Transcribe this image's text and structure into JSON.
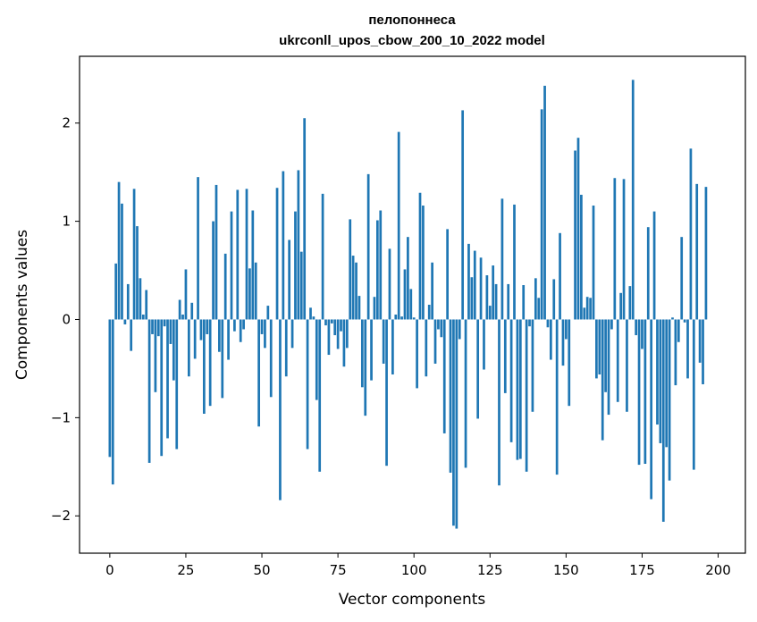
{
  "chart_data": {
    "type": "bar",
    "title": "пелопоннеса",
    "subtitle": "ukrconll_upos_cbow_200_10_2022 model",
    "xlabel": "Vector components",
    "ylabel": "Components values",
    "xlim": [
      -9.95,
      208.95
    ],
    "ylim": [
      -2.38,
      2.68
    ],
    "xticks": [
      0,
      25,
      50,
      75,
      100,
      125,
      150,
      175,
      200
    ],
    "yticks": [
      -2,
      -1,
      0,
      1,
      2
    ],
    "ytick_labels": [
      "−2",
      "−1",
      "0",
      "1",
      "2"
    ],
    "grid": false,
    "bar_color": "#1f77b4",
    "values": [
      -1.4,
      -1.68,
      0.57,
      1.4,
      1.18,
      -0.05,
      0.36,
      -0.32,
      1.33,
      0.95,
      0.42,
      0.05,
      0.3,
      -1.46,
      -0.15,
      -0.74,
      -0.17,
      -1.39,
      -0.07,
      -1.21,
      -0.25,
      -0.62,
      -1.32,
      0.2,
      0.05,
      0.51,
      -0.58,
      0.17,
      -0.4,
      1.45,
      -0.21,
      -0.96,
      -0.15,
      -0.88,
      1.0,
      1.37,
      -0.33,
      -0.8,
      0.67,
      -0.41,
      1.1,
      -0.12,
      1.32,
      -0.23,
      -0.1,
      1.33,
      0.52,
      1.11,
      0.58,
      -1.09,
      -0.15,
      -0.29,
      0.14,
      -0.79,
      0.0,
      1.34,
      -1.84,
      1.51,
      -0.58,
      0.81,
      -0.29,
      1.1,
      1.52,
      0.69,
      2.05,
      -1.32,
      0.12,
      0.03,
      -0.82,
      -1.55,
      1.28,
      -0.06,
      -0.36,
      -0.04,
      -0.16,
      -0.3,
      -0.12,
      -0.48,
      -0.29,
      1.02,
      0.65,
      0.58,
      0.24,
      -0.69,
      -0.98,
      1.48,
      -0.62,
      0.23,
      1.01,
      1.11,
      -0.45,
      -1.49,
      0.72,
      -0.56,
      0.05,
      1.91,
      0.03,
      0.51,
      0.84,
      0.31,
      0.02,
      -0.7,
      1.29,
      1.16,
      -0.58,
      0.15,
      0.58,
      -0.45,
      -0.1,
      -0.18,
      -1.16,
      0.92,
      -1.56,
      -2.1,
      -2.13,
      -0.2,
      2.13,
      -1.51,
      0.77,
      0.43,
      0.7,
      -1.01,
      0.63,
      -0.51,
      0.45,
      0.14,
      0.55,
      0.36,
      -1.69,
      1.23,
      -0.75,
      0.36,
      -1.25,
      1.17,
      -1.43,
      -1.42,
      0.35,
      -1.55,
      -0.07,
      -0.94,
      0.42,
      0.22,
      2.14,
      2.38,
      -0.08,
      -0.41,
      0.41,
      -1.58,
      0.88,
      -0.47,
      -0.2,
      -0.88,
      0.0,
      1.72,
      1.85,
      1.27,
      0.12,
      0.23,
      0.22,
      1.16,
      -0.6,
      -0.56,
      -1.23,
      -0.74,
      -0.97,
      -0.1,
      1.44,
      -0.84,
      0.27,
      1.43,
      -0.94,
      0.34,
      2.44,
      -0.16,
      -1.48,
      -0.3,
      -1.47,
      0.94,
      -1.83,
      1.1,
      -1.07,
      -1.26,
      -2.06,
      -1.3,
      -1.64,
      0.02,
      -0.67,
      -0.23,
      0.84,
      -0.03,
      -0.6,
      1.74,
      -1.53,
      1.38,
      -0.44,
      -0.66,
      1.35
    ]
  }
}
